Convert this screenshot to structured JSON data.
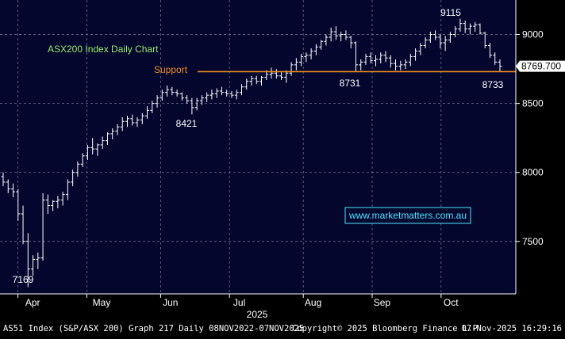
{
  "chart_data": {
    "type": "bar",
    "subtype": "ohlc",
    "title": "ASX200 Index Daily Chart",
    "support_label": "Support",
    "support_level": 8731,
    "last_price_label": "8769.700",
    "last_price": 8769.7,
    "watermark": "www.marketmatters.com.au",
    "y_ticks": [
      7500,
      8000,
      8500,
      9000
    ],
    "y_tick_labels": [
      "7500",
      "8000",
      "8500",
      "9000"
    ],
    "ylim": [
      7120,
      9250
    ],
    "x_months": [
      "Apr",
      "May",
      "Jun",
      "Jul",
      "Aug",
      "Sep",
      "Oct"
    ],
    "year_label": "2025",
    "grid": true,
    "annotations": [
      {
        "text": "9115",
        "day": 133,
        "value": 9115
      },
      {
        "text": "8731",
        "day": 103,
        "value": 8731
      },
      {
        "text": "8733",
        "day": 145,
        "value": 8733
      },
      {
        "text": "8421",
        "day": 55,
        "value": 8421
      },
      {
        "text": "7169",
        "day": 6,
        "value": 7169
      }
    ],
    "series": [
      {
        "values": [
          [
            7970,
            8000,
            7900,
            7930
          ],
          [
            7930,
            7950,
            7850,
            7880
          ],
          [
            7880,
            7920,
            7820,
            7860
          ],
          [
            7860,
            7880,
            7650,
            7700
          ],
          [
            7700,
            7760,
            7480,
            7500
          ],
          [
            7500,
            7560,
            7169,
            7300
          ],
          [
            7300,
            7400,
            7250,
            7370
          ],
          [
            7370,
            7420,
            7300,
            7380
          ],
          [
            7380,
            7850,
            7360,
            7800
          ],
          [
            7800,
            7840,
            7700,
            7760
          ],
          [
            7760,
            7800,
            7720,
            7790
          ],
          [
            7790,
            7830,
            7740,
            7800
          ],
          [
            7800,
            7860,
            7760,
            7840
          ],
          [
            7840,
            7950,
            7800,
            7930
          ],
          [
            7930,
            8020,
            7900,
            8000
          ],
          [
            8000,
            8080,
            7970,
            8060
          ],
          [
            8060,
            8140,
            8040,
            8120
          ],
          [
            8120,
            8200,
            8090,
            8180
          ],
          [
            8180,
            8250,
            8130,
            8170
          ],
          [
            8170,
            8210,
            8120,
            8200
          ],
          [
            8200,
            8260,
            8170,
            8230
          ],
          [
            8230,
            8290,
            8200,
            8280
          ],
          [
            8280,
            8320,
            8240,
            8300
          ],
          [
            8300,
            8350,
            8270,
            8330
          ],
          [
            8330,
            8400,
            8300,
            8370
          ],
          [
            8370,
            8410,
            8330,
            8390
          ],
          [
            8390,
            8420,
            8340,
            8360
          ],
          [
            8360,
            8400,
            8330,
            8380
          ],
          [
            8380,
            8430,
            8350,
            8410
          ],
          [
            8410,
            8480,
            8390,
            8450
          ],
          [
            8450,
            8520,
            8430,
            8500
          ],
          [
            8500,
            8560,
            8470,
            8540
          ],
          [
            8540,
            8600,
            8520,
            8580
          ],
          [
            8580,
            8630,
            8550,
            8600
          ],
          [
            8600,
            8620,
            8560,
            8580
          ],
          [
            8580,
            8600,
            8550,
            8570
          ],
          [
            8570,
            8580,
            8520,
            8540
          ],
          [
            8540,
            8560,
            8500,
            8520
          ],
          [
            8520,
            8540,
            8421,
            8470
          ],
          [
            8470,
            8540,
            8450,
            8520
          ],
          [
            8520,
            8560,
            8490,
            8540
          ],
          [
            8540,
            8580,
            8510,
            8560
          ],
          [
            8560,
            8600,
            8530,
            8570
          ],
          [
            8570,
            8610,
            8540,
            8590
          ],
          [
            8590,
            8620,
            8560,
            8580
          ],
          [
            8580,
            8600,
            8550,
            8570
          ],
          [
            8570,
            8590,
            8540,
            8560
          ],
          [
            8560,
            8600,
            8530,
            8580
          ],
          [
            8580,
            8640,
            8560,
            8620
          ],
          [
            8620,
            8680,
            8600,
            8660
          ],
          [
            8660,
            8700,
            8630,
            8680
          ],
          [
            8680,
            8700,
            8640,
            8660
          ],
          [
            8660,
            8700,
            8630,
            8690
          ],
          [
            8690,
            8740,
            8670,
            8710
          ],
          [
            8710,
            8760,
            8680,
            8720
          ],
          [
            8720,
            8750,
            8680,
            8700
          ],
          [
            8700,
            8730,
            8670,
            8690
          ],
          [
            8690,
            8740,
            8650,
            8720
          ],
          [
            8720,
            8800,
            8700,
            8780
          ],
          [
            8780,
            8830,
            8740,
            8800
          ],
          [
            8800,
            8860,
            8770,
            8840
          ],
          [
            8840,
            8870,
            8800,
            8850
          ],
          [
            8850,
            8900,
            8820,
            8880
          ],
          [
            8880,
            8930,
            8850,
            8910
          ],
          [
            8910,
            8960,
            8890,
            8950
          ],
          [
            8950,
            9000,
            8920,
            8980
          ],
          [
            8980,
            9050,
            8950,
            9020
          ],
          [
            9020,
            9060,
            8960,
            8990
          ],
          [
            8990,
            9020,
            8950,
            9000
          ],
          [
            9000,
            9030,
            8960,
            8980
          ],
          [
            8980,
            8990,
            8900,
            8940
          ],
          [
            8940,
            8950,
            8731,
            8780
          ],
          [
            8780,
            8820,
            8740,
            8800
          ],
          [
            8800,
            8860,
            8780,
            8840
          ],
          [
            8840,
            8870,
            8790,
            8810
          ],
          [
            8810,
            8850,
            8770,
            8820
          ],
          [
            8820,
            8870,
            8790,
            8850
          ],
          [
            8850,
            8880,
            8800,
            8830
          ],
          [
            8830,
            8850,
            8760,
            8790
          ],
          [
            8790,
            8820,
            8740,
            8770
          ],
          [
            8770,
            8810,
            8740,
            8780
          ],
          [
            8780,
            8820,
            8750,
            8800
          ],
          [
            8800,
            8860,
            8770,
            8840
          ],
          [
            8840,
            8900,
            8810,
            8880
          ],
          [
            8880,
            8940,
            8850,
            8920
          ],
          [
            8920,
            8980,
            8900,
            8960
          ],
          [
            8960,
            9020,
            8940,
            9000
          ],
          [
            9000,
            9030,
            8960,
            8980
          ],
          [
            8980,
            9000,
            8900,
            8940
          ],
          [
            8940,
            8990,
            8880,
            8960
          ],
          [
            8960,
            9020,
            8940,
            9000
          ],
          [
            9000,
            9060,
            8980,
            9040
          ],
          [
            9040,
            9115,
            9020,
            9080
          ],
          [
            9080,
            9100,
            9010,
            9040
          ],
          [
            9040,
            9080,
            9000,
            9060
          ],
          [
            9060,
            9090,
            9020,
            9070
          ],
          [
            9070,
            9080,
            9000,
            9010
          ],
          [
            9010,
            9020,
            8900,
            8920
          ],
          [
            8920,
            8940,
            8830,
            8850
          ],
          [
            8850,
            8870,
            8780,
            8800
          ],
          [
            8800,
            8820,
            8733,
            8770
          ]
        ]
      }
    ]
  },
  "footer": {
    "left": "AS51 Index (S&P/ASX 200) Graph 217 Daily 08NOV2022-07NOV2025",
    "middle": "Copyright© 2025 Bloomberg Finance L.P.",
    "right": "07-Nov-2025 16:29:16"
  },
  "colors": {
    "background": "#03072e",
    "bars": "#ffffff",
    "title": "#9ee86a",
    "support": "#f28b1c",
    "grid": "#6a6f8a",
    "watermark": "#4fe3ff"
  }
}
